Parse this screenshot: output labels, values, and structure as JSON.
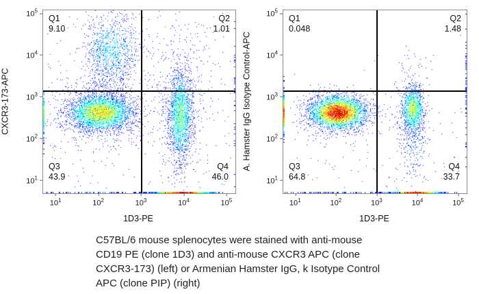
{
  "figure": {
    "caption_lines": [
      "C57BL/6 mouse splenocytes were stained with anti-mouse",
      "CD19 PE (clone 1D3) and anti-mouse CXCR3 APC (clone",
      "CXCR3-173) (left) or Armenian Hamster IgG, k Isotype Control",
      "APC (clone PIP) (right)"
    ]
  },
  "chart_data": [
    {
      "type": "scatter",
      "subtype": "flow-cytometry-density-plot",
      "panel": "left",
      "xlabel": "1D3-PE",
      "ylabel": "CXCR3-173-APC",
      "x_scale": "log",
      "y_scale": "log",
      "colormap": "jet",
      "frame_color": "#8c8c8c",
      "gate_color": "#000000",
      "x_tick_exponents": [
        1,
        2,
        3,
        4,
        5
      ],
      "y_tick_exponents": [
        1,
        2,
        3,
        4,
        5
      ],
      "xlim_log": [
        0.71,
        5.21
      ],
      "ylim_log": [
        0.68,
        5.07
      ],
      "gate_x_log": 3.0,
      "gate_y_log": 3.14,
      "quadrants": [
        {
          "name": "Q1",
          "value": "9.10",
          "position": "top-left"
        },
        {
          "name": "Q2",
          "value": "1.01",
          "position": "top-right"
        },
        {
          "name": "Q3",
          "value": "43.9",
          "position": "bottom-left"
        },
        {
          "name": "Q4",
          "value": "46.0",
          "position": "bottom-right"
        }
      ],
      "populations": [
        {
          "name": "background-scatter",
          "kind": "uniform",
          "x0": 0.8,
          "x1": 5.1,
          "y0": 0.8,
          "y1": 5.0,
          "n": 260,
          "peak": 0.08
        },
        {
          "name": "q3-halo",
          "kind": "gauss",
          "cx": 2.05,
          "cy": 2.6,
          "sx": 0.55,
          "sy": 0.38,
          "n": 750,
          "peak": 0.12
        },
        {
          "name": "cd19-column-halo",
          "kind": "gauss",
          "cx": 3.9,
          "cy": 2.5,
          "sx": 0.28,
          "sy": 0.75,
          "n": 420,
          "peak": 0.12
        },
        {
          "name": "q1-q3-bridge",
          "kind": "gauss",
          "cx": 2.25,
          "cy": 3.4,
          "sx": 0.3,
          "sy": 0.45,
          "n": 260,
          "peak": 0.12
        },
        {
          "name": "q2-sparse",
          "kind": "gauss",
          "cx": 3.95,
          "cy": 3.8,
          "sx": 0.4,
          "sy": 0.7,
          "n": 170,
          "peak": 0.1
        },
        {
          "name": "cxcr3-positive-q1-cloud",
          "kind": "gauss",
          "cx": 2.3,
          "cy": 4.15,
          "sx": 0.33,
          "sy": 0.42,
          "n": 950,
          "peak": 0.3
        },
        {
          "name": "cd19-positive-column",
          "kind": "gauss",
          "cx": 3.92,
          "cy": 2.55,
          "sx": 0.13,
          "sy": 0.5,
          "n": 1650,
          "peak": 0.5
        },
        {
          "name": "negative-main-cluster",
          "kind": "gauss",
          "cx": 2.05,
          "cy": 2.62,
          "sx": 0.36,
          "sy": 0.21,
          "n": 3000,
          "peak": 0.67
        },
        {
          "name": "bottom-axis-pileup",
          "kind": "edge-bottom",
          "cx": 3.95,
          "sx": 0.42,
          "n": 430,
          "peak": 0.95
        },
        {
          "name": "bottom-axis-sparse",
          "kind": "edge-bottom",
          "cx": 2.0,
          "sx": 0.8,
          "n": 70,
          "peak": 0.12
        },
        {
          "name": "left-edge-pileup",
          "kind": "edge-left",
          "cy": 2.6,
          "sy": 0.35,
          "n": 90,
          "peak": 0.5
        },
        {
          "name": "right-edge-sparse",
          "kind": "edge-right",
          "cy": 3.5,
          "sy": 1.0,
          "n": 40,
          "peak": 0.1
        }
      ]
    },
    {
      "type": "scatter",
      "subtype": "flow-cytometry-density-plot",
      "panel": "right",
      "xlabel": "1D3-PE",
      "ylabel": "A. Hamster IgG Isotype Control-APC",
      "x_scale": "log",
      "y_scale": "log",
      "colormap": "jet",
      "frame_color": "#8c8c8c",
      "gate_color": "#000000",
      "x_tick_exponents": [
        1,
        2,
        3,
        4,
        5
      ],
      "y_tick_exponents": [
        1,
        2,
        3,
        4,
        5
      ],
      "xlim_log": [
        0.71,
        5.21
      ],
      "ylim_log": [
        0.68,
        5.07
      ],
      "gate_x_log": 3.0,
      "gate_y_log": 3.14,
      "quadrants": [
        {
          "name": "Q1",
          "value": "0.048",
          "position": "top-left"
        },
        {
          "name": "Q2",
          "value": "1.48",
          "position": "top-right"
        },
        {
          "name": "Q3",
          "value": "64.8",
          "position": "bottom-left"
        },
        {
          "name": "Q4",
          "value": "33.7",
          "position": "bottom-right"
        }
      ],
      "populations": [
        {
          "name": "background-scatter-low",
          "kind": "uniform",
          "x0": 0.8,
          "x1": 5.1,
          "y0": 0.8,
          "y1": 3.1,
          "n": 100,
          "peak": 0.08
        },
        {
          "name": "background-scatter-full",
          "kind": "uniform",
          "x0": 0.8,
          "x1": 5.1,
          "y0": 0.8,
          "y1": 5.0,
          "n": 14,
          "peak": 0.08
        },
        {
          "name": "main-halo",
          "kind": "gauss",
          "cx": 2.05,
          "cy": 2.6,
          "sx": 0.52,
          "sy": 0.25,
          "n": 600,
          "peak": 0.12
        },
        {
          "name": "cd19-column-tail",
          "kind": "gauss",
          "cx": 3.88,
          "cy": 2.0,
          "sx": 0.18,
          "sy": 0.55,
          "n": 320,
          "peak": 0.15
        },
        {
          "name": "q2-sparse",
          "kind": "gauss",
          "cx": 3.85,
          "cy": 3.35,
          "sx": 0.25,
          "sy": 0.35,
          "n": 90,
          "peak": 0.1
        },
        {
          "name": "cd19-positive-column",
          "kind": "gauss",
          "cx": 3.88,
          "cy": 2.7,
          "sx": 0.13,
          "sy": 0.28,
          "n": 1150,
          "peak": 0.58
        },
        {
          "name": "negative-main-cluster",
          "kind": "gauss",
          "cx": 2.05,
          "cy": 2.62,
          "sx": 0.33,
          "sy": 0.19,
          "n": 3400,
          "peak": 0.97
        },
        {
          "name": "bottom-axis-pileup",
          "kind": "edge-bottom",
          "cx": 3.95,
          "sx": 0.35,
          "n": 390,
          "peak": 0.95
        },
        {
          "name": "bottom-axis-sparse",
          "kind": "edge-bottom",
          "cx": 2.1,
          "sx": 0.9,
          "n": 80,
          "peak": 0.12
        },
        {
          "name": "left-edge-pileup",
          "kind": "edge-left",
          "cy": 2.6,
          "sy": 0.28,
          "n": 130,
          "peak": 0.85
        },
        {
          "name": "right-edge-sparse",
          "kind": "edge-right",
          "cy": 3.2,
          "sy": 0.9,
          "n": 60,
          "peak": 0.12
        }
      ]
    }
  ]
}
